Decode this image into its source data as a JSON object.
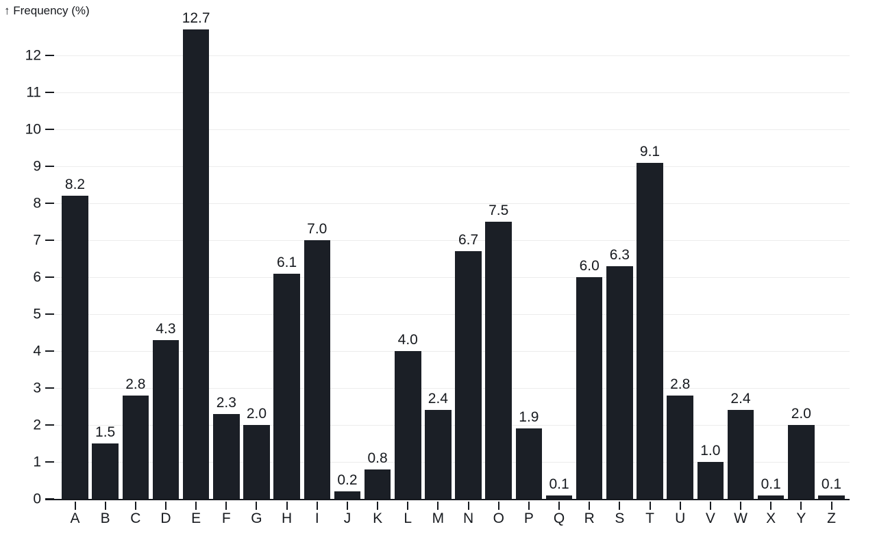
{
  "chart_data": {
    "type": "bar",
    "y_axis_arrow": "↑",
    "ylabel": "Frequency (%)",
    "xlabel": "",
    "categories": [
      "A",
      "B",
      "C",
      "D",
      "E",
      "F",
      "G",
      "H",
      "I",
      "J",
      "K",
      "L",
      "M",
      "N",
      "O",
      "P",
      "Q",
      "R",
      "S",
      "T",
      "U",
      "V",
      "W",
      "X",
      "Y",
      "Z"
    ],
    "values": [
      8.2,
      1.5,
      2.8,
      4.3,
      12.7,
      2.3,
      2.0,
      6.1,
      7.0,
      0.2,
      0.8,
      4.0,
      2.4,
      6.7,
      7.5,
      1.9,
      0.1,
      6.0,
      6.3,
      9.1,
      2.8,
      1.0,
      2.4,
      0.1,
      2.0,
      0.1
    ],
    "value_labels": [
      "8.2",
      "1.5",
      "2.8",
      "4.3",
      "12.7",
      "2.3",
      "2.0",
      "6.1",
      "7.0",
      "0.2",
      "0.8",
      "4.0",
      "2.4",
      "6.7",
      "7.5",
      "1.9",
      "0.1",
      "6.0",
      "6.3",
      "9.1",
      "2.8",
      "1.0",
      "2.4",
      "0.1",
      "2.0",
      "0.1"
    ],
    "y_ticks": [
      0,
      1,
      2,
      3,
      4,
      5,
      6,
      7,
      8,
      9,
      10,
      11,
      12
    ],
    "ylim": [
      0,
      12.7
    ],
    "grid": true,
    "legend": "none",
    "colors": {
      "bar": "#1b1f26",
      "grid": "#ececec",
      "axis": "#16191e",
      "text": "#16191e",
      "background": "#ffffff"
    }
  }
}
